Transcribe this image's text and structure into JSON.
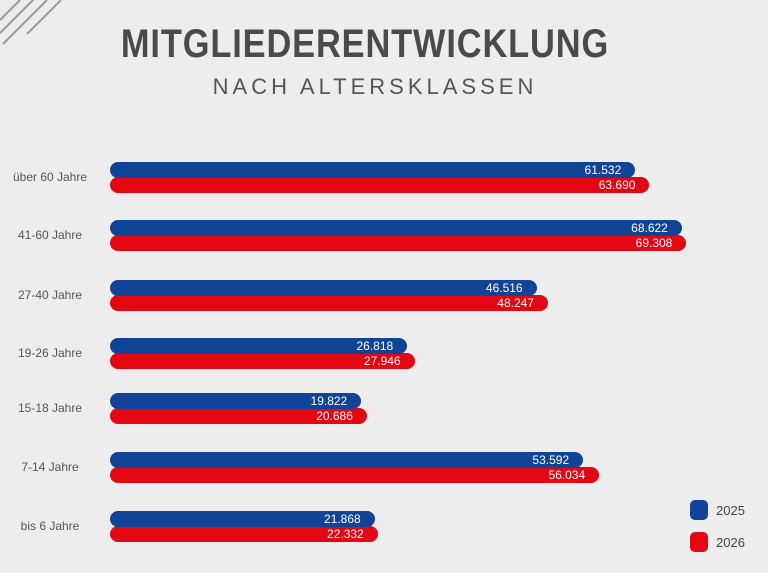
{
  "chart_data": {
    "type": "bar",
    "orientation": "horizontal",
    "title": "MITGLIEDERENTWICKLUNG",
    "subtitle": "NACH ALTERSKLASSEN",
    "categories": [
      "über 60 Jahre",
      "41-60 Jahre",
      "27-40 Jahre",
      "19-26 Jahre",
      "15-18 Jahre",
      "7-14 Jahre",
      "bis 6 Jahre"
    ],
    "series": [
      {
        "name": "2025",
        "color": "#114497",
        "values": [
          61532,
          68622,
          46516,
          26818,
          19822,
          53592,
          21868
        ],
        "labels": [
          "61.532",
          "68.622",
          "46.516",
          "26.818",
          "19.822",
          "53.592",
          "21.868"
        ]
      },
      {
        "name": "2026",
        "color": "#e30613",
        "values": [
          63690,
          69308,
          48247,
          27946,
          20686,
          56034,
          22332
        ],
        "labels": [
          "63.690",
          "69.308",
          "48.247",
          "27.946",
          "20.686",
          "56.034",
          "22.332"
        ]
      }
    ],
    "legend_position": "bottom-right",
    "grid": false
  }
}
